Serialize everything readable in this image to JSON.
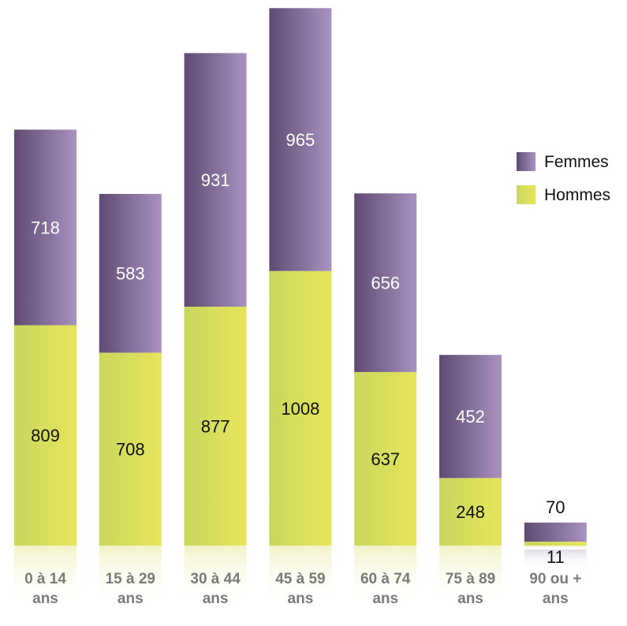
{
  "chart_data": {
    "type": "bar",
    "stacked": true,
    "categories": [
      [
        "0 à 14",
        "ans"
      ],
      [
        "15 à 29",
        "ans"
      ],
      [
        "30 à 44",
        "ans"
      ],
      [
        "45 à 59",
        "ans"
      ],
      [
        "60 à 74",
        "ans"
      ],
      [
        "75 à 89",
        "ans"
      ],
      [
        "90 ou +",
        "ans"
      ]
    ],
    "series": [
      {
        "name": "Hommes",
        "values": [
          809,
          708,
          877,
          1008,
          637,
          248,
          11
        ],
        "color": "#d9e05a"
      },
      {
        "name": "Femmes",
        "values": [
          718,
          583,
          931,
          965,
          656,
          452,
          70
        ],
        "color": "#7a5f93"
      }
    ],
    "legend_position": "right",
    "grid": false,
    "colors": {
      "hommes_dark": "#c9d75e",
      "hommes_light": "#e6e55a",
      "femmes_dark": "#5e4a72",
      "femmes_light": "#a993c2",
      "category_label": "#7a7a7a"
    }
  }
}
